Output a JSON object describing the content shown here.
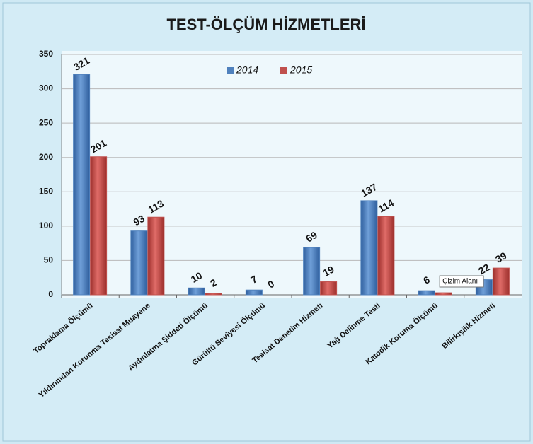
{
  "chart_data": {
    "type": "bar",
    "title": "TEST-ÖLÇÜM HİZMETLERİ",
    "categories": [
      "Topraklama Ölçümü",
      "Yıldırımdan Korunma Tesisat Muayene",
      "Aydınlatma Şiddeti Ölçümü",
      "Gürültü Seviyesi Ölçümü",
      "Tesisat Denetim Hizmeti",
      "Yağ Delinme Testi",
      "Katodik Koruma Ölçümü",
      "Bilirkişilik Hizmeti"
    ],
    "series": [
      {
        "name": "2014",
        "color": "#4f81bd",
        "values": [
          321,
          93,
          10,
          7,
          69,
          137,
          6,
          22
        ]
      },
      {
        "name": "2015",
        "color": "#c0504d",
        "values": [
          201,
          113,
          2,
          0,
          19,
          114,
          3,
          39
        ]
      }
    ],
    "ylim": [
      0,
      350
    ],
    "yticks": [
      0,
      50,
      100,
      150,
      200,
      250,
      300,
      350
    ],
    "grid": true,
    "legend": "top",
    "tooltip": "Çizim Alanı"
  }
}
